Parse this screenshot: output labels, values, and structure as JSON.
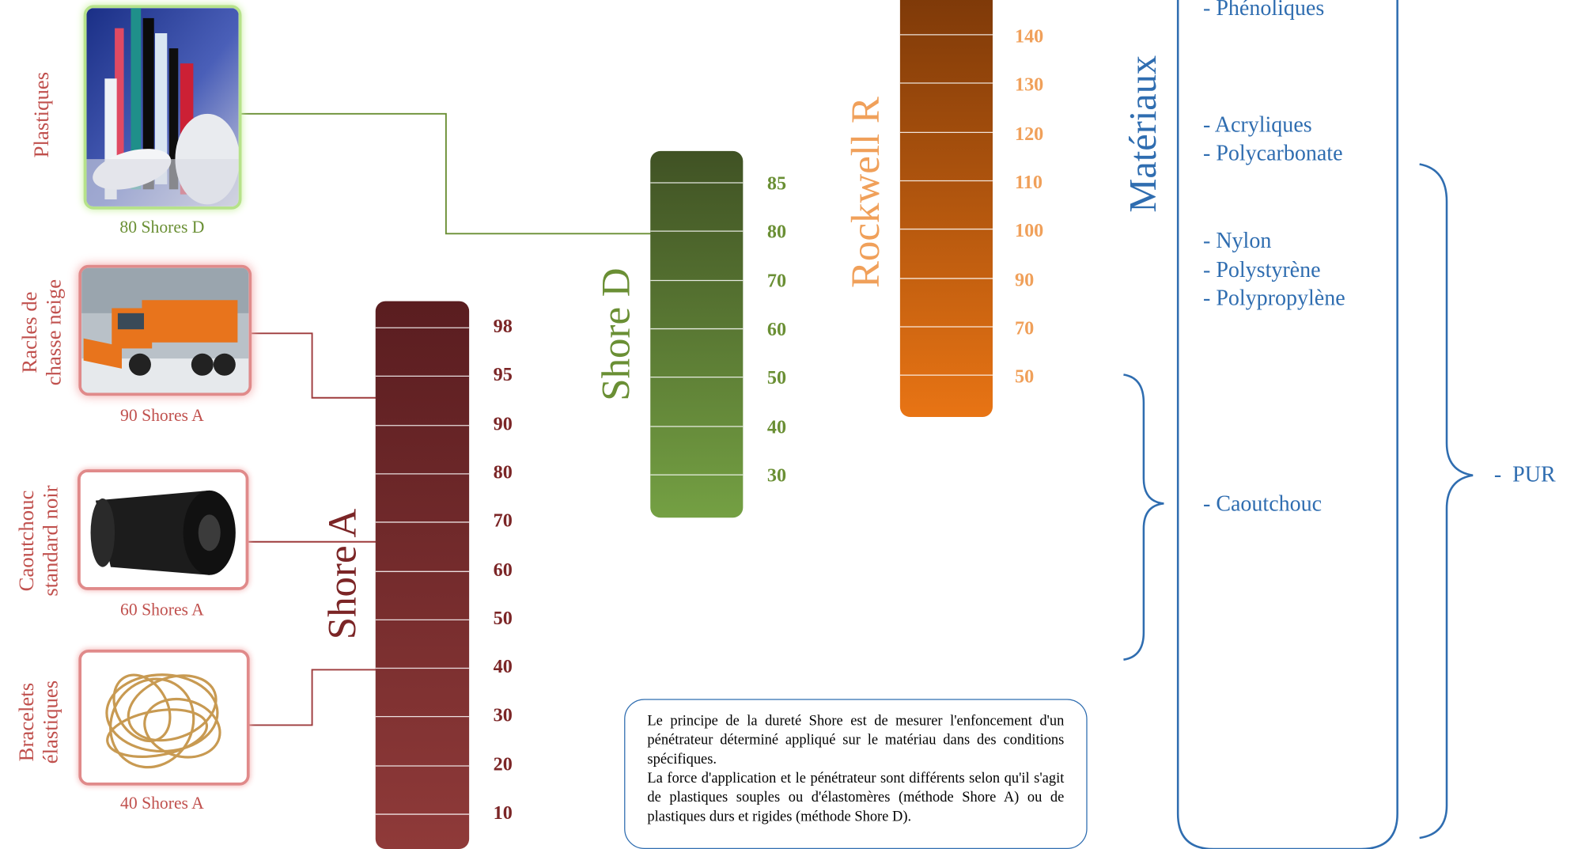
{
  "colors": {
    "plastic_green": "#6a8f34",
    "rubber_red": "#b8484a",
    "shore_a_title": "#7b2526",
    "shore_d_title": "#6a8f34",
    "rockwell_title": "#f0a05a",
    "material_blue": "#2f6db0"
  },
  "examples": [
    {
      "category": "Plastiques",
      "caption": "80 Shores D",
      "photo_icon": "plastic-rods-photo"
    },
    {
      "category": "Racles de\nchasse neige",
      "caption": "90 Shores A",
      "photo_icon": "snowplow-truck-photo"
    },
    {
      "category": "Caoutchouc\nstandard noir",
      "caption": "60 Shores A",
      "photo_icon": "rubber-roll-photo"
    },
    {
      "category": "Bracelets\nélastiques",
      "caption": "40 Shores A",
      "photo_icon": "rubber-bands-photo"
    }
  ],
  "scales": {
    "shore_a": {
      "title": "Shore A",
      "ticks": [
        "98",
        "95",
        "90",
        "80",
        "70",
        "60",
        "50",
        "40",
        "30",
        "20",
        "10"
      ]
    },
    "shore_d": {
      "title": "Shore D",
      "ticks": [
        "85",
        "80",
        "70",
        "60",
        "50",
        "40",
        "30"
      ]
    },
    "rockwell_r": {
      "title": "Rockwell R",
      "ticks": [
        "140",
        "130",
        "120",
        "110",
        "100",
        "90",
        "70",
        "50"
      ]
    }
  },
  "materials": {
    "title": "Matériaux",
    "items": [
      "- Phénoliques",
      "- Acryliques",
      "- Polycarbonate",
      "- Nylon",
      "- Polystyrène",
      "- Polypropylène",
      "- Caoutchouc"
    ],
    "pur_label": "-  PUR"
  },
  "info": {
    "paragraph1": "Le principe de la dureté Shore est de mesurer l'enfoncement d'un pénétrateur déterminé appliqué sur le matériau dans des conditions spécifiques.",
    "paragraph2": "La force d'application et le pénétrateur sont différents selon qu'il s'agit de plastiques souples ou d'élastomères (méthode Shore A) ou de plastiques durs et rigides (méthode Shore D)."
  }
}
